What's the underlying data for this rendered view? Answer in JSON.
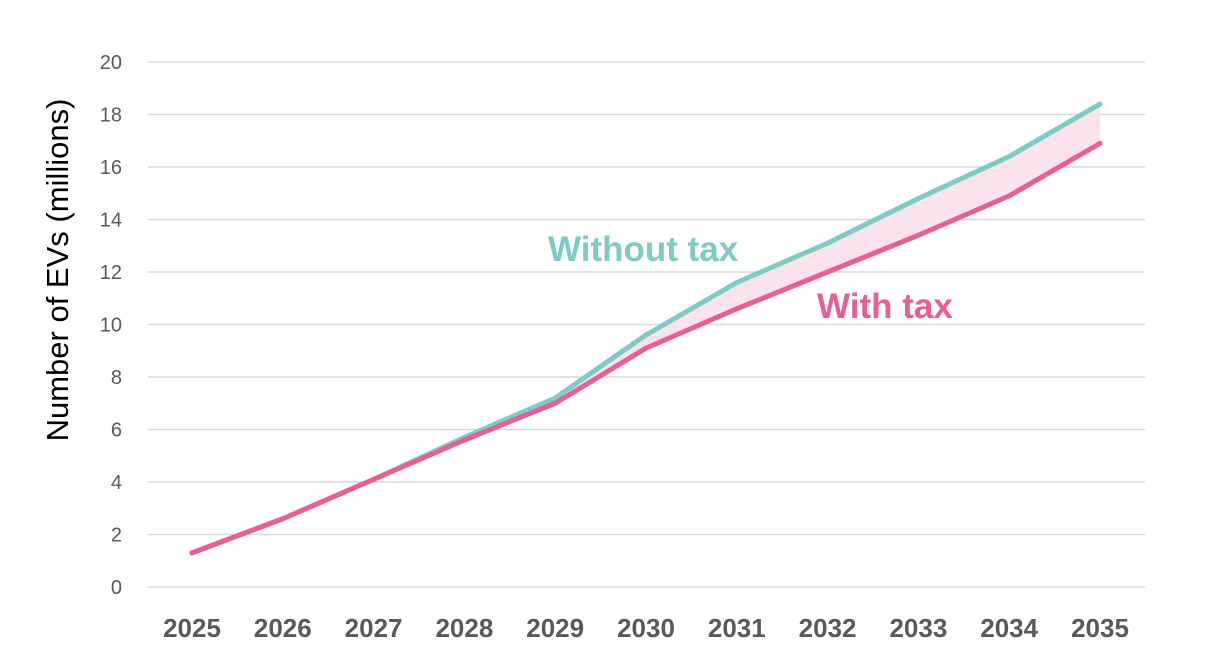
{
  "chart_data": {
    "type": "line",
    "title": "",
    "xlabel": "",
    "ylabel": "Number of EVs (millions)",
    "ylim": [
      0,
      20
    ],
    "yticks": [
      0,
      2,
      4,
      6,
      8,
      10,
      12,
      14,
      16,
      18,
      20
    ],
    "grid": true,
    "categories": [
      "2025",
      "2026",
      "2027",
      "2028",
      "2029",
      "2030",
      "2031",
      "2032",
      "2033",
      "2034",
      "2035"
    ],
    "series": [
      {
        "name": "Without tax",
        "color": "#7ecac5",
        "values": [
          1.3,
          2.6,
          4.1,
          5.7,
          7.2,
          9.6,
          11.6,
          13.1,
          14.8,
          16.4,
          18.4
        ]
      },
      {
        "name": "With tax",
        "color": "#e85f96",
        "values": [
          1.3,
          2.6,
          4.1,
          5.6,
          7.0,
          9.1,
          10.6,
          12.0,
          13.4,
          14.9,
          16.9
        ]
      }
    ],
    "gap_fill_color": "#fbe3ee"
  }
}
